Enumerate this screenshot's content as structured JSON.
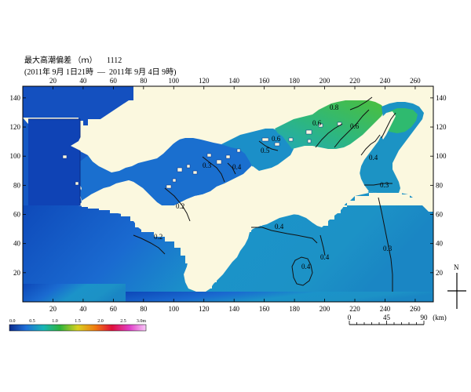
{
  "header": {
    "title": "最大高潮偏差 （ｍ）",
    "case_id": "1112",
    "period": "(2011年 9月 1日21時  ―  2011年 9月 4日 9時)"
  },
  "axes": {
    "x_ticks": [
      "20",
      "40",
      "60",
      "80",
      "100",
      "120",
      "140",
      "160",
      "180",
      "200",
      "220",
      "240",
      "260"
    ],
    "y_ticks": [
      "20",
      "40",
      "60",
      "80",
      "100",
      "120",
      "140"
    ]
  },
  "contour_labels": [
    "0.2",
    "0.2",
    "0.3",
    "0.3",
    "0.3",
    "0.4",
    "0.4",
    "0.4",
    "0.4",
    "0.4",
    "0.5",
    "0.6",
    "0.6",
    "0.6",
    "0.8"
  ],
  "colorbar": {
    "tick_labels": [
      "0.0",
      "0.5",
      "1.0",
      "1.5",
      "2.0",
      "2.5",
      "3.0m"
    ],
    "colors": [
      "#0a2a8c",
      "#1f6fd8",
      "#18b5b5",
      "#2db33c",
      "#d8d020",
      "#f07a10",
      "#e0103c",
      "#e040c8",
      "#f8c8f8"
    ]
  },
  "north_arrow": {
    "label": "N"
  },
  "scale_bar": {
    "labels": [
      "0",
      "45",
      "90"
    ],
    "unit": "(km)"
  },
  "colors": {
    "land": "#fbf8df",
    "sea_low": "#1a5cc8",
    "sea_mid": "#1d9fc8",
    "sea_high": "#3fbf44"
  }
}
